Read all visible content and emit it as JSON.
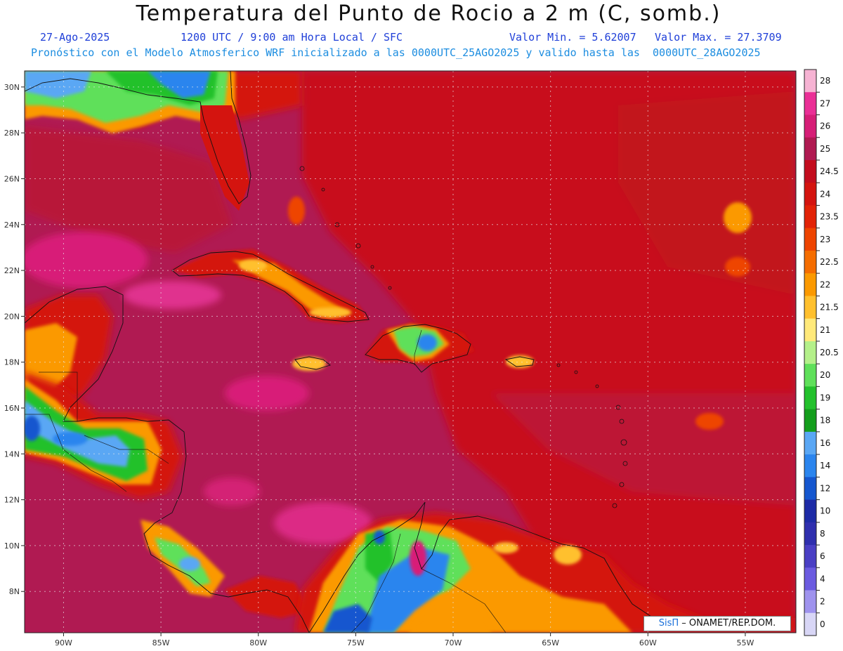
{
  "header": {
    "title": "Temperatura del Punto de Rocio a 2 m (C, somb.)",
    "date": "27-Ago-2025",
    "time": "1200 UTC / 9:00 am Hora Local / SFC",
    "min": "Valor Min. = 5.62007",
    "max": "Valor Max. = 27.3709",
    "model_line": "Pronóstico con el Modelo Atmosferico WRF inicializado a las 0000UTC_25AGO2025 y valido hasta las  0000UTC_28AGO2025"
  },
  "map": {
    "lon_labels": [
      "90W",
      "85W",
      "80W",
      "75W",
      "70W",
      "65W",
      "60W",
      "55W"
    ],
    "lat_labels": [
      "30N",
      "28N",
      "26N",
      "24N",
      "22N",
      "20N",
      "18N",
      "16N",
      "14N",
      "12N",
      "10N",
      "8N"
    ],
    "lon_values": [
      -90,
      -85,
      -80,
      -75,
      -70,
      -65,
      -60,
      -55
    ],
    "lat_values": [
      30,
      28,
      26,
      24,
      22,
      20,
      18,
      16,
      14,
      12,
      10,
      8
    ],
    "background_color": "#b01a52"
  },
  "colorbar": {
    "labels": [
      "28",
      "27",
      "26",
      "25",
      "24.5",
      "24",
      "23.5",
      "23",
      "22.5",
      "22",
      "21.5",
      "21",
      "20.5",
      "20",
      "19",
      "18",
      "16",
      "14",
      "12",
      "10",
      "8",
      "6",
      "4",
      "2",
      "0"
    ],
    "colors": [
      "#f6b3d3",
      "#ea2f96",
      "#d61e77",
      "#b01a52",
      "#c30d1e",
      "#d4140f",
      "#e22307",
      "#ee4400",
      "#f56d00",
      "#fb9900",
      "#ffc02e",
      "#ffe97a",
      "#b4f08a",
      "#5fe05a",
      "#23c12c",
      "#149e1c",
      "#5aa7f4",
      "#2b85ee",
      "#1557cf",
      "#1d2ba6",
      "#2f2fae",
      "#4a3fc4",
      "#6b5be0",
      "#9f93ee",
      "#d8d6f6"
    ]
  },
  "credit": {
    "logo": "SisΠ",
    "text": " – ONAMET/REP.DOM."
  }
}
